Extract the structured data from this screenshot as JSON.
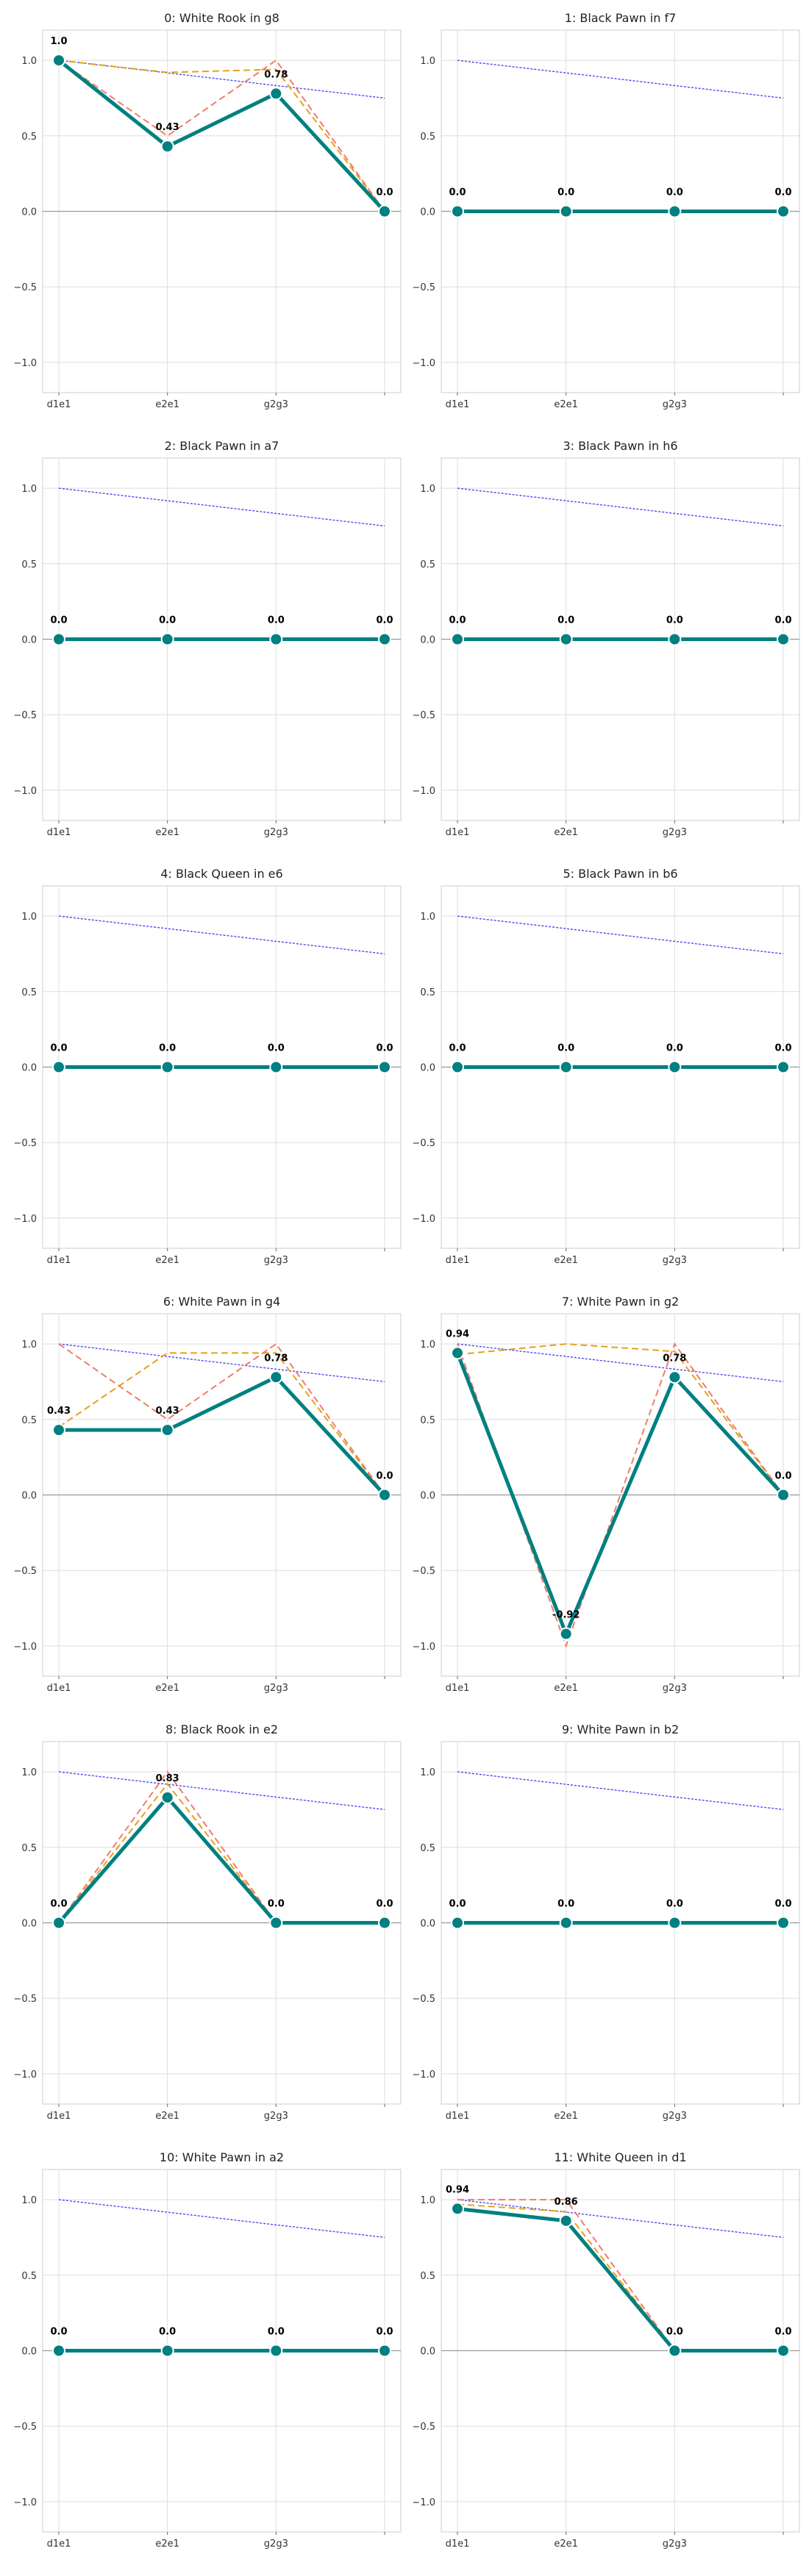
{
  "chart_data": [
    {
      "type": "line",
      "title": "0: White Rook in g8",
      "categories": [
        "d1e1",
        "e2e1",
        "g2g3",
        ""
      ],
      "ylim": [
        -1.2,
        1.2
      ],
      "yticks": [
        "−1.0",
        "−0.5",
        "0.0",
        "0.5",
        "1.0"
      ],
      "grid": true,
      "series": [
        {
          "values": [
            1.0,
            0.43,
            0.78,
            0.0
          ],
          "labels": [
            "1.0",
            "0.43",
            "0.78",
            "0.0"
          ],
          "color": "#008080"
        },
        {
          "values": [
            1.0,
            0.5,
            1.0,
            0.0
          ],
          "color": "#f07c6c"
        },
        {
          "values": [
            1.0,
            0.92,
            0.94,
            0.0
          ],
          "color": "#e6a01c"
        },
        {
          "values": [
            1.0,
            0.917,
            0.833,
            0.75
          ],
          "color": "#4a4af0"
        }
      ]
    },
    {
      "type": "line",
      "title": "1: Black Pawn in f7",
      "categories": [
        "d1e1",
        "e2e1",
        "g2g3",
        ""
      ],
      "ylim": [
        -1.2,
        1.2
      ],
      "yticks": [
        "−1.0",
        "−0.5",
        "0.0",
        "0.5",
        "1.0"
      ],
      "grid": true,
      "series": [
        {
          "values": [
            0,
            0,
            0,
            0
          ],
          "labels": [
            "0.0",
            "0.0",
            "0.0",
            "0.0"
          ],
          "color": "#008080"
        },
        {
          "values": [
            1.0,
            0.917,
            0.833,
            0.75
          ],
          "color": "#4a4af0"
        }
      ]
    },
    {
      "type": "line",
      "title": "2: Black Pawn in a7",
      "categories": [
        "d1e1",
        "e2e1",
        "g2g3",
        ""
      ],
      "ylim": [
        -1.2,
        1.2
      ],
      "yticks": [
        "−1.0",
        "−0.5",
        "0.0",
        "0.5",
        "1.0"
      ],
      "grid": true,
      "series": [
        {
          "values": [
            0,
            0,
            0,
            0
          ],
          "labels": [
            "0.0",
            "0.0",
            "0.0",
            "0.0"
          ],
          "color": "#008080"
        },
        {
          "values": [
            1.0,
            0.917,
            0.833,
            0.75
          ],
          "color": "#4a4af0"
        }
      ]
    },
    {
      "type": "line",
      "title": "3: Black Pawn in h6",
      "categories": [
        "d1e1",
        "e2e1",
        "g2g3",
        ""
      ],
      "ylim": [
        -1.2,
        1.2
      ],
      "yticks": [
        "−1.0",
        "−0.5",
        "0.0",
        "0.5",
        "1.0"
      ],
      "grid": true,
      "series": [
        {
          "values": [
            0,
            0,
            0,
            0
          ],
          "labels": [
            "0.0",
            "0.0",
            "0.0",
            "0.0"
          ],
          "color": "#008080"
        },
        {
          "values": [
            1.0,
            0.917,
            0.833,
            0.75
          ],
          "color": "#4a4af0"
        }
      ]
    },
    {
      "type": "line",
      "title": "4: Black Queen in e6",
      "categories": [
        "d1e1",
        "e2e1",
        "g2g3",
        ""
      ],
      "ylim": [
        -1.2,
        1.2
      ],
      "yticks": [
        "−1.0",
        "−0.5",
        "0.0",
        "0.5",
        "1.0"
      ],
      "grid": true,
      "series": [
        {
          "values": [
            0,
            0,
            0,
            0
          ],
          "labels": [
            "0.0",
            "0.0",
            "0.0",
            "0.0"
          ],
          "color": "#008080"
        },
        {
          "values": [
            1.0,
            0.917,
            0.833,
            0.75
          ],
          "color": "#4a4af0"
        }
      ]
    },
    {
      "type": "line",
      "title": "5: Black Pawn in b6",
      "categories": [
        "d1e1",
        "e2e1",
        "g2g3",
        ""
      ],
      "ylim": [
        -1.2,
        1.2
      ],
      "yticks": [
        "−1.0",
        "−0.5",
        "0.0",
        "0.5",
        "1.0"
      ],
      "grid": true,
      "series": [
        {
          "values": [
            0,
            0,
            0,
            0
          ],
          "labels": [
            "0.0",
            "0.0",
            "0.0",
            "0.0"
          ],
          "color": "#008080"
        },
        {
          "values": [
            1.0,
            0.917,
            0.833,
            0.75
          ],
          "color": "#4a4af0"
        }
      ]
    },
    {
      "type": "line",
      "title": "6: White Pawn in g4",
      "categories": [
        "d1e1",
        "e2e1",
        "g2g3",
        ""
      ],
      "ylim": [
        -1.2,
        1.2
      ],
      "yticks": [
        "−1.0",
        "−0.5",
        "0.0",
        "0.5",
        "1.0"
      ],
      "grid": true,
      "series": [
        {
          "values": [
            0.43,
            0.43,
            0.78,
            0.0
          ],
          "labels": [
            "0.43",
            "0.43",
            "0.78",
            "0.0"
          ],
          "color": "#008080"
        },
        {
          "values": [
            1.0,
            0.5,
            1.0,
            0.0
          ],
          "color": "#f07c6c"
        },
        {
          "values": [
            0.45,
            0.94,
            0.94,
            0.0
          ],
          "color": "#e6a01c"
        },
        {
          "values": [
            1.0,
            0.917,
            0.833,
            0.75
          ],
          "color": "#4a4af0"
        }
      ]
    },
    {
      "type": "line",
      "title": "7: White Pawn in g2",
      "categories": [
        "d1e1",
        "e2e1",
        "g2g3",
        ""
      ],
      "ylim": [
        -1.2,
        1.2
      ],
      "yticks": [
        "−1.0",
        "−0.5",
        "0.0",
        "0.5",
        "1.0"
      ],
      "grid": true,
      "series": [
        {
          "values": [
            0.94,
            -0.92,
            0.78,
            0.0
          ],
          "labels": [
            "0.94",
            "-0.92",
            "0.78",
            "0.0"
          ],
          "color": "#008080"
        },
        {
          "values": [
            1.0,
            -1.0,
            1.0,
            0.0
          ],
          "color": "#f07c6c"
        },
        {
          "values": [
            0.93,
            1.0,
            0.95,
            0.0
          ],
          "color": "#e6a01c"
        },
        {
          "values": [
            1.0,
            0.917,
            0.833,
            0.75
          ],
          "color": "#4a4af0"
        }
      ]
    },
    {
      "type": "line",
      "title": "8: Black Rook in e2",
      "categories": [
        "d1e1",
        "e2e1",
        "g2g3",
        ""
      ],
      "ylim": [
        -1.2,
        1.2
      ],
      "yticks": [
        "−1.0",
        "−0.5",
        "0.0",
        "0.5",
        "1.0"
      ],
      "grid": true,
      "series": [
        {
          "values": [
            0.0,
            0.83,
            0.0,
            0.0
          ],
          "labels": [
            "0.0",
            "0.83",
            "0.0",
            "0.0"
          ],
          "color": "#008080"
        },
        {
          "values": [
            0.0,
            1.0,
            0.0,
            0.0
          ],
          "color": "#f07c6c"
        },
        {
          "values": [
            0.0,
            0.92,
            0.0,
            0.0
          ],
          "color": "#e6a01c"
        },
        {
          "values": [
            1.0,
            0.917,
            0.833,
            0.75
          ],
          "color": "#4a4af0"
        }
      ]
    },
    {
      "type": "line",
      "title": "9: White Pawn in b2",
      "categories": [
        "d1e1",
        "e2e1",
        "g2g3",
        ""
      ],
      "ylim": [
        -1.2,
        1.2
      ],
      "yticks": [
        "−1.0",
        "−0.5",
        "0.0",
        "0.5",
        "1.0"
      ],
      "grid": true,
      "series": [
        {
          "values": [
            0,
            0,
            0,
            0
          ],
          "labels": [
            "0.0",
            "0.0",
            "0.0",
            "0.0"
          ],
          "color": "#008080"
        },
        {
          "values": [
            1.0,
            0.917,
            0.833,
            0.75
          ],
          "color": "#4a4af0"
        }
      ]
    },
    {
      "type": "line",
      "title": "10: White Pawn in a2",
      "categories": [
        "d1e1",
        "e2e1",
        "g2g3",
        ""
      ],
      "ylim": [
        -1.2,
        1.2
      ],
      "yticks": [
        "−1.0",
        "−0.5",
        "0.0",
        "0.5",
        "1.0"
      ],
      "grid": true,
      "series": [
        {
          "values": [
            0,
            0,
            0,
            0
          ],
          "labels": [
            "0.0",
            "0.0",
            "0.0",
            "0.0"
          ],
          "color": "#008080"
        },
        {
          "values": [
            1.0,
            0.917,
            0.833,
            0.75
          ],
          "color": "#4a4af0"
        }
      ]
    },
    {
      "type": "line",
      "title": "11: White Queen in d1",
      "categories": [
        "d1e1",
        "e2e1",
        "g2g3",
        ""
      ],
      "ylim": [
        -1.2,
        1.2
      ],
      "yticks": [
        "−1.0",
        "−0.5",
        "0.0",
        "0.5",
        "1.0"
      ],
      "grid": true,
      "series": [
        {
          "values": [
            0.94,
            0.86,
            0.0,
            0.0
          ],
          "labels": [
            "0.94",
            "0.86",
            "0.0",
            "0.0"
          ],
          "color": "#008080"
        },
        {
          "values": [
            1.0,
            1.0,
            0.0,
            0.0
          ],
          "color": "#f07c6c"
        },
        {
          "values": [
            0.97,
            0.92,
            0.0,
            0.0
          ],
          "color": "#e6a01c"
        },
        {
          "values": [
            1.0,
            0.917,
            0.833,
            0.75
          ],
          "color": "#4a4af0"
        }
      ]
    }
  ]
}
